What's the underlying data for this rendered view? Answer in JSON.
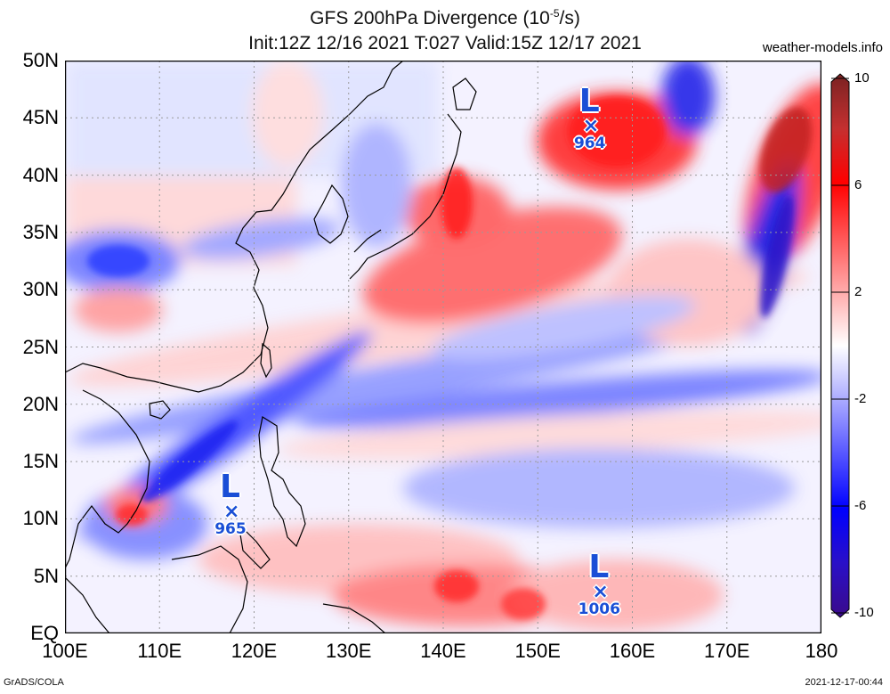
{
  "title": {
    "line1_main": "GFS 200hPa Divergence (10",
    "line1_exp": "-5",
    "line1_end": "/s)",
    "line2": "Init:12Z 12/16 2021 T:027 Valid:15Z 12/17 2021"
  },
  "site_label": "weather-models.info",
  "footer": {
    "left": "GrADS/COLA",
    "right": "2021-12-17-00:44"
  },
  "axes": {
    "lat_labels": [
      "50N",
      "45N",
      "40N",
      "35N",
      "30N",
      "25N",
      "20N",
      "15N",
      "10N",
      "5N",
      "EQ"
    ],
    "lat_values": [
      50,
      45,
      40,
      35,
      30,
      25,
      20,
      15,
      10,
      5,
      0
    ],
    "lon_labels": [
      "100E",
      "110E",
      "120E",
      "130E",
      "140E",
      "150E",
      "160E",
      "170E",
      "180"
    ],
    "lon_values": [
      100,
      110,
      120,
      130,
      140,
      150,
      160,
      170,
      180
    ],
    "lat_range": [
      0,
      50
    ],
    "lon_range": [
      100,
      180
    ],
    "grid": "dotted"
  },
  "colorbar": {
    "labels": [
      "10",
      "6",
      "2",
      "-2",
      "-6",
      "-10"
    ],
    "values": [
      10,
      6,
      2,
      -2,
      -6,
      -10
    ],
    "colors": {
      "max": "#8b2525",
      "pos": "#ff0000",
      "neutral": "#ffffff",
      "neg": "#1010ff",
      "min": "#3a0a8a"
    }
  },
  "lows": [
    {
      "symbol": "L",
      "mark": "×",
      "pressure": "964",
      "lon": 155.5,
      "lat": 44.2
    },
    {
      "symbol": "L",
      "mark": "×",
      "pressure": "965",
      "lon": 117.5,
      "lat": 10.5
    },
    {
      "symbol": "L",
      "mark": "×",
      "pressure": "1006",
      "lon": 156.5,
      "lat": 3.5
    }
  ]
}
